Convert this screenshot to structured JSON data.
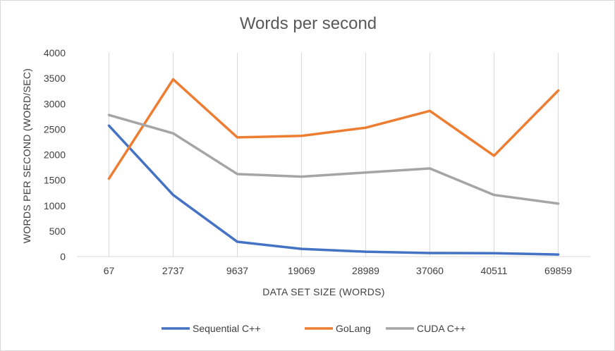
{
  "chart_data": {
    "type": "line",
    "title": "Words per second",
    "xlabel": "DATA SET SIZE (WORDS)",
    "ylabel": "WORDS PER SECOND (WORD/SEC)",
    "categories": [
      "67",
      "2737",
      "9637",
      "19069",
      "28989",
      "37060",
      "40511",
      "69859"
    ],
    "ylim": [
      0,
      4000
    ],
    "yticks": [
      "0",
      "500",
      "1000",
      "1500",
      "2000",
      "2500",
      "3000",
      "3500",
      "4000"
    ],
    "grid": "vertical",
    "legend_position": "bottom",
    "series": [
      {
        "name": "Sequential C++",
        "color": "#4472c4",
        "values": [
          2570,
          1210,
          290,
          150,
          95,
          70,
          65,
          40
        ]
      },
      {
        "name": "GoLang",
        "color": "#ed7d31",
        "values": [
          1530,
          3480,
          2340,
          2370,
          2530,
          2860,
          1980,
          3260
        ]
      },
      {
        "name": "CUDA C++",
        "color": "#a5a5a5",
        "values": [
          2780,
          2420,
          1620,
          1570,
          1650,
          1730,
          1210,
          1040
        ]
      }
    ]
  }
}
